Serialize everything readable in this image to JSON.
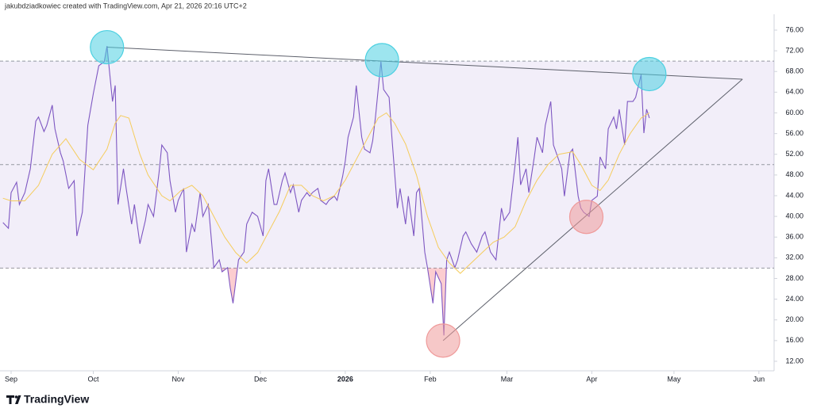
{
  "header": "jakubdziadkowiec created with TradingView.com, Apr 21, 2026 20:16 UTC+2",
  "footer": "TradingView",
  "chart_data": {
    "type": "line",
    "xlim": [
      -4.06,
      278.55
    ],
    "ylim": [
      10.16,
      79.06
    ],
    "xticks": [
      {
        "value": 0,
        "label": "Sep"
      },
      {
        "value": 30,
        "label": "Oct"
      },
      {
        "value": 61,
        "label": "Nov"
      },
      {
        "value": 91,
        "label": "Dec"
      },
      {
        "value": 122,
        "label": "2026"
      },
      {
        "value": 153,
        "label": "Feb"
      },
      {
        "value": 181,
        "label": "Mar"
      },
      {
        "value": 212,
        "label": "Apr"
      },
      {
        "value": 242,
        "label": "May"
      },
      {
        "value": 273,
        "label": "Jun"
      }
    ],
    "yticks": [
      {
        "value": 76,
        "label": "76.00"
      },
      {
        "value": 72,
        "label": "72.00"
      },
      {
        "value": 68,
        "label": "68.00"
      },
      {
        "value": 64,
        "label": "64.00"
      },
      {
        "value": 60,
        "label": "60.00"
      },
      {
        "value": 56,
        "label": "56.00"
      },
      {
        "value": 52,
        "label": "52.00"
      },
      {
        "value": 48,
        "label": "48.00"
      },
      {
        "value": 44,
        "label": "44.00"
      },
      {
        "value": 40,
        "label": "40.00"
      },
      {
        "value": 36,
        "label": "36.00"
      },
      {
        "value": 32,
        "label": "32.00"
      },
      {
        "value": 28,
        "label": "28.00"
      },
      {
        "value": 24,
        "label": "24.00"
      },
      {
        "value": 20,
        "label": "20.00"
      },
      {
        "value": 16,
        "label": "16.00"
      },
      {
        "value": 12,
        "label": "12.00"
      }
    ],
    "levels": [
      70,
      50,
      30
    ],
    "band_color": "#7e57c2",
    "series": [
      {
        "color": "#7e57c2",
        "x": [
          -3,
          -1,
          0,
          2,
          3,
          5,
          7,
          9,
          10,
          12,
          13,
          15,
          16,
          18,
          19,
          21,
          23,
          24,
          26,
          28,
          30,
          32,
          34,
          35,
          36,
          37,
          38,
          39,
          41,
          42,
          44,
          45,
          47,
          49,
          50,
          52,
          54,
          55,
          57,
          58,
          60,
          61,
          63,
          64,
          66,
          67,
          69,
          70,
          72,
          74,
          76,
          77,
          79,
          80,
          81,
          83,
          85,
          86,
          88,
          90,
          92,
          93,
          94,
          96,
          97,
          99,
          100,
          102,
          103,
          105,
          106,
          108,
          109,
          110,
          112,
          113,
          115,
          116,
          118,
          119,
          121,
          122,
          123,
          125,
          126,
          128,
          129,
          131,
          132,
          133,
          135,
          136,
          138,
          139,
          141,
          142,
          144,
          145,
          147,
          148,
          149,
          151,
          152,
          154,
          155,
          157,
          158,
          159,
          160,
          162,
          163,
          165,
          166,
          168,
          170,
          172,
          173,
          175,
          177,
          179,
          180,
          182,
          184,
          185,
          186,
          188,
          189,
          191,
          192,
          194,
          195,
          197,
          198,
          199,
          201,
          202,
          204,
          205,
          207,
          208,
          209,
          211,
          212,
          214,
          215,
          217,
          218,
          220,
          221,
          222,
          224,
          225,
          227,
          228,
          230,
          231,
          232,
          233
        ],
        "values": [
          38.8,
          37.7,
          44.6,
          46.6,
          42.3,
          44.6,
          49.2,
          58.4,
          59.2,
          56.4,
          57.6,
          61.5,
          56.9,
          52.3,
          50.7,
          45.4,
          46.9,
          36.2,
          40.8,
          57.6,
          63.7,
          69.1,
          69.9,
          72.9,
          67.6,
          62.2,
          65.3,
          42.3,
          49.2,
          45.4,
          38.5,
          42.3,
          34.7,
          39.2,
          42.3,
          40.0,
          48.4,
          53.8,
          52.3,
          46.9,
          40.8,
          43.1,
          45.4,
          33.1,
          38.5,
          37.0,
          44.6,
          40.0,
          42.3,
          30.1,
          31.6,
          29.3,
          30.1,
          26.2,
          23.2,
          31.6,
          33.1,
          38.5,
          40.8,
          40.0,
          36.2,
          46.9,
          49.2,
          42.3,
          42.3,
          46.9,
          48.4,
          44.6,
          46.1,
          40.8,
          43.1,
          44.6,
          43.9,
          44.6,
          45.4,
          43.1,
          42.3,
          43.1,
          43.9,
          43.1,
          47.7,
          50.7,
          55.3,
          59.2,
          65.3,
          55.3,
          53.0,
          52.3,
          54.6,
          59.2,
          69.9,
          64.5,
          63.0,
          55.3,
          41.6,
          45.4,
          38.5,
          43.9,
          36.2,
          44.6,
          45.4,
          33.1,
          30.1,
          23.2,
          29.3,
          27.0,
          17.0,
          31.6,
          33.1,
          30.1,
          31.6,
          36.2,
          37.0,
          34.7,
          33.1,
          36.2,
          37.0,
          33.1,
          31.6,
          41.6,
          39.2,
          40.8,
          50.0,
          55.3,
          46.1,
          49.2,
          44.6,
          51.5,
          55.3,
          52.3,
          57.6,
          62.2,
          53.8,
          52.3,
          49.2,
          43.9,
          52.3,
          53.0,
          43.9,
          41.6,
          40.8,
          40.0,
          43.1,
          43.9,
          51.5,
          49.2,
          56.9,
          59.2,
          56.9,
          60.7,
          53.8,
          62.2,
          62.2,
          63.0,
          67.4,
          56.1,
          60.7,
          59.0
        ]
      },
      {
        "color": "#f5cc5c",
        "x": [
          -3,
          0,
          5,
          10,
          15,
          20,
          25,
          30,
          35,
          38,
          40,
          43,
          47,
          50,
          55,
          58,
          62,
          66,
          70,
          74,
          78,
          82,
          86,
          90,
          94,
          98,
          102,
          106,
          110,
          114,
          118,
          122,
          126,
          130,
          134,
          137,
          140,
          144,
          148,
          152,
          156,
          160,
          164,
          168,
          172,
          176,
          180,
          184,
          188,
          192,
          196,
          200,
          205,
          208,
          212,
          215,
          218,
          222,
          226,
          230,
          233
        ],
        "values": [
          43.5,
          43,
          43,
          46,
          52,
          55,
          51,
          49,
          53,
          58,
          59.5,
          59,
          52,
          48,
          44,
          43,
          45,
          46,
          44,
          40,
          36,
          33,
          31,
          33,
          37,
          41,
          46,
          46,
          44,
          43,
          44,
          47,
          51,
          55,
          59,
          60,
          58,
          54,
          48,
          40,
          34,
          31,
          29,
          31,
          33,
          35,
          36,
          38,
          43,
          47,
          50,
          52,
          52.5,
          50,
          46,
          45,
          47,
          52,
          56,
          59,
          60
        ]
      }
    ],
    "circles": [
      {
        "x": 35,
        "y": 72.7,
        "color": "#4dd0e1"
      },
      {
        "x": 135.4,
        "y": 70.2,
        "color": "#4dd0e1"
      },
      {
        "x": 233,
        "y": 67.5,
        "color": "#4dd0e1"
      },
      {
        "x": 157.7,
        "y": 16,
        "color": "#ef9a9a"
      },
      {
        "x": 210,
        "y": 39.9,
        "color": "#ef9a9a"
      }
    ],
    "trendlines": [
      {
        "x1": 35,
        "y1": 72.7,
        "x2": 267,
        "y2": 66.5
      },
      {
        "x1": 157.7,
        "y1": 16,
        "x2": 267,
        "y2": 66.5
      }
    ]
  }
}
